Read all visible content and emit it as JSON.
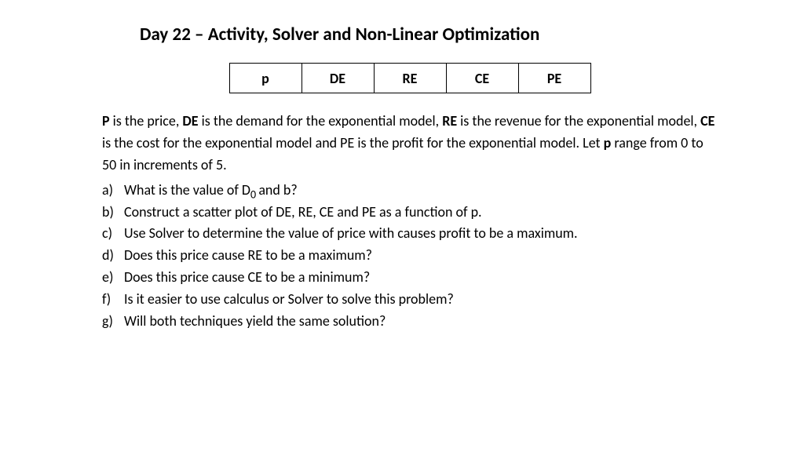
{
  "title": "Day 22 – Activity, Solver and Non-Linear Optimization",
  "table_headers": [
    "p",
    "DE",
    "RE",
    "CE",
    "PE"
  ],
  "desc": {
    "p": "P",
    "p_txt": " is the price, ",
    "de": "DE",
    "de_txt": " is the demand for the exponential model, ",
    "re": "RE",
    "re_txt": " is the revenue for the exponential model, ",
    "ce": "CE",
    "ce_txt": " is the cost for the exponential model and PE is the profit for the exponential model.  Let ",
    "pr": "p",
    "pr_txt": " range from 0 to 50 in increments of 5."
  },
  "questions": {
    "a_marker": "a)",
    "a_pre": "What is the value of D",
    "a_sub": "0 ",
    "a_post": "and b?",
    "b_marker": "b)",
    "b": "Construct a scatter plot of DE, RE, CE and PE as a function of p.",
    "c_marker": "c)",
    "c": "Use Solver to determine the value of price with causes profit to be a maximum.",
    "d_marker": "d)",
    "d": "Does this price cause RE to be a maximum?",
    "e_marker": "e)",
    "e": "Does this price cause CE to be a minimum?",
    "f_marker": "f)",
    "f": " Is it easier to use calculus or Solver to solve this problem?",
    "g_marker": "g)",
    "g": "Will both techniques yield the same solution?"
  },
  "colors": {
    "background": "#ffffff",
    "text": "#000000",
    "border": "#000000"
  }
}
